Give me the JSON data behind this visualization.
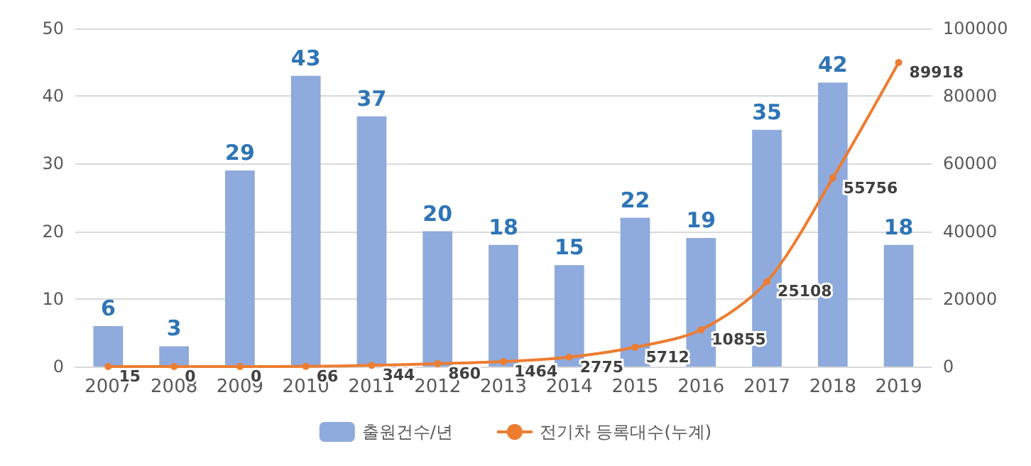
{
  "chart_data": {
    "type": "bar",
    "categories": [
      "2007",
      "2008",
      "2009",
      "2010",
      "2011",
      "2012",
      "2013",
      "2014",
      "2015",
      "2016",
      "2017",
      "2018",
      "2019"
    ],
    "series": [
      {
        "name": "출원건수/년",
        "color": "#8faadc",
        "values": [
          6,
          3,
          29,
          43,
          37,
          20,
          18,
          15,
          22,
          19,
          35,
          42,
          18
        ]
      },
      {
        "name": "전기차 등록대수(누계)",
        "type": "line",
        "axis": "y2",
        "color": "#ed7d31",
        "values": [
          15,
          0,
          0,
          66,
          344,
          860,
          1464,
          2775,
          5712,
          10855,
          25108,
          55756,
          89918
        ]
      }
    ],
    "ylim": [
      0,
      50
    ],
    "yticks": [
      0,
      10,
      20,
      30,
      40,
      50
    ],
    "y2lim": [
      0,
      100000
    ],
    "y2ticks": [
      0,
      20000,
      40000,
      60000,
      80000,
      100000
    ],
    "grid": "y",
    "legend": "bottom",
    "data_labels": true,
    "marker": "circle",
    "line_style": "solid"
  }
}
